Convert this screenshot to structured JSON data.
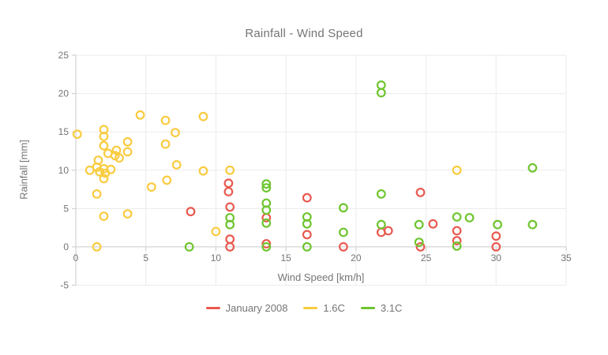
{
  "chart_data": {
    "type": "scatter",
    "title": "Rainfall - Wind Speed",
    "xlabel": "Wind Speed [km/h]",
    "ylabel": "Rainfall [mm]",
    "xlim": [
      0,
      35
    ],
    "ylim": [
      -5,
      25
    ],
    "xticks": [
      0,
      5,
      10,
      15,
      20,
      25,
      30,
      35
    ],
    "yticks": [
      -5,
      0,
      5,
      10,
      15,
      20,
      25
    ],
    "grid": true,
    "legend_position": "bottom",
    "marker_style": "hollow-ring",
    "colors": {
      "text": "#757575",
      "grid": "#EBEBEB",
      "axis": "#C9C9C9",
      "background": "#FFFFFF"
    },
    "series": [
      {
        "name": "January 2008",
        "color": "#E8594F",
        "points": [
          [
            8.2,
            4.6
          ],
          [
            10.9,
            8.3
          ],
          [
            10.9,
            7.2
          ],
          [
            11.0,
            5.2
          ],
          [
            11.0,
            1.0
          ],
          [
            11.0,
            0.0
          ],
          [
            13.6,
            3.8
          ],
          [
            13.6,
            0.4
          ],
          [
            16.5,
            6.4
          ],
          [
            16.5,
            1.6
          ],
          [
            19.1,
            0.0
          ],
          [
            21.8,
            1.9
          ],
          [
            22.3,
            2.1
          ],
          [
            24.6,
            7.1
          ],
          [
            24.6,
            0.0
          ],
          [
            25.5,
            3.0
          ],
          [
            27.2,
            2.1
          ],
          [
            27.2,
            0.8
          ],
          [
            30.0,
            1.4
          ],
          [
            30.0,
            0.0
          ]
        ]
      },
      {
        "name": "1.6C",
        "color": "#F9CB3E",
        "points": [
          [
            0.1,
            14.7
          ],
          [
            1.0,
            10.0
          ],
          [
            1.5,
            10.4
          ],
          [
            1.6,
            11.3
          ],
          [
            1.7,
            9.8
          ],
          [
            1.5,
            6.9
          ],
          [
            1.5,
            0.0
          ],
          [
            2.0,
            15.3
          ],
          [
            2.0,
            14.4
          ],
          [
            2.0,
            13.2
          ],
          [
            2.0,
            10.2
          ],
          [
            2.0,
            8.9
          ],
          [
            2.0,
            4.0
          ],
          [
            2.1,
            9.6
          ],
          [
            2.3,
            12.2
          ],
          [
            2.5,
            10.1
          ],
          [
            2.9,
            12.6
          ],
          [
            2.8,
            11.9
          ],
          [
            3.1,
            11.6
          ],
          [
            3.7,
            12.4
          ],
          [
            3.7,
            13.7
          ],
          [
            3.7,
            4.3
          ],
          [
            4.6,
            17.2
          ],
          [
            5.4,
            7.8
          ],
          [
            6.4,
            16.5
          ],
          [
            6.4,
            13.4
          ],
          [
            6.5,
            8.7
          ],
          [
            7.1,
            14.9
          ],
          [
            7.2,
            10.7
          ],
          [
            9.1,
            17.0
          ],
          [
            9.1,
            9.9
          ],
          [
            10.0,
            2.0
          ],
          [
            11.0,
            10.0
          ],
          [
            27.2,
            10.0
          ]
        ]
      },
      {
        "name": "3.1C",
        "color": "#6EC52F",
        "points": [
          [
            8.1,
            0.0
          ],
          [
            11.0,
            3.8
          ],
          [
            11.0,
            2.9
          ],
          [
            13.6,
            8.2
          ],
          [
            13.6,
            7.7
          ],
          [
            13.6,
            5.7
          ],
          [
            13.6,
            4.8
          ],
          [
            13.6,
            3.1
          ],
          [
            13.6,
            0.0
          ],
          [
            16.5,
            3.9
          ],
          [
            16.5,
            3.0
          ],
          [
            16.5,
            0.0
          ],
          [
            19.1,
            5.1
          ],
          [
            19.1,
            1.9
          ],
          [
            21.8,
            21.1
          ],
          [
            21.8,
            20.1
          ],
          [
            21.8,
            6.9
          ],
          [
            21.8,
            2.9
          ],
          [
            24.5,
            2.9
          ],
          [
            24.5,
            0.6
          ],
          [
            27.2,
            3.9
          ],
          [
            27.2,
            0.1
          ],
          [
            28.1,
            3.8
          ],
          [
            30.1,
            2.9
          ],
          [
            32.6,
            10.3
          ],
          [
            32.6,
            2.9
          ]
        ]
      }
    ]
  }
}
